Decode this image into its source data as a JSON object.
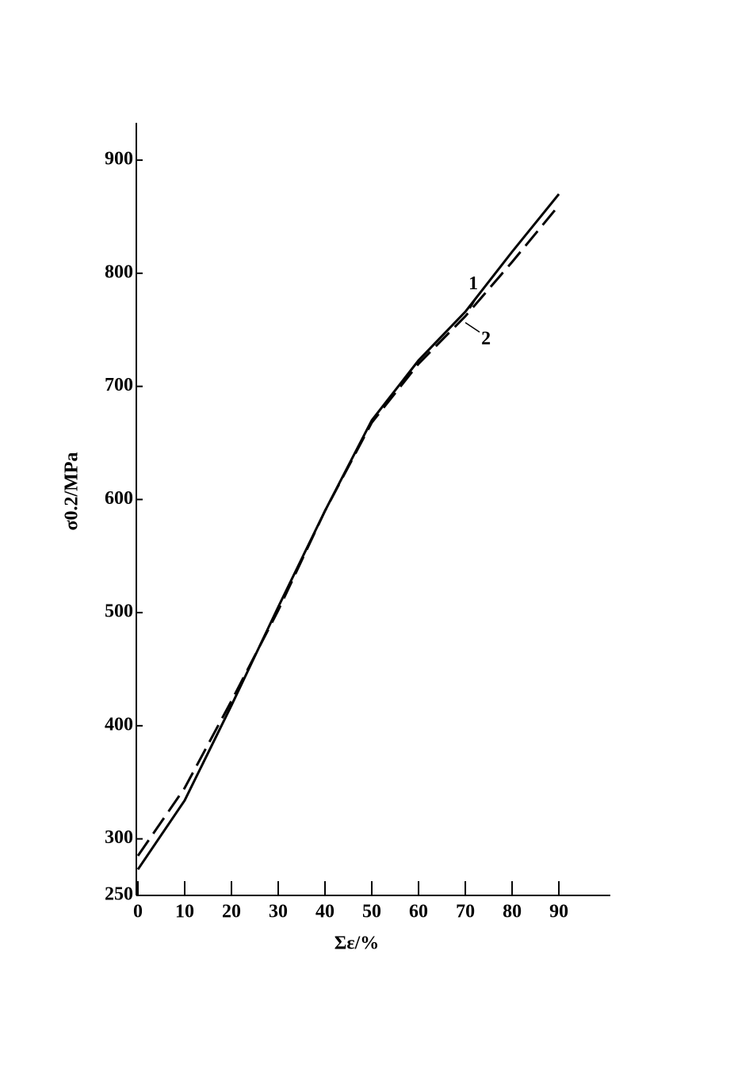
{
  "chart_data": {
    "type": "line",
    "x_label": "Σε/%",
    "y_label": "σ0.2/MPa",
    "x": [
      0,
      10,
      20,
      30,
      40,
      50,
      60,
      70,
      80,
      90
    ],
    "series": [
      {
        "name": "1",
        "color": "#000000",
        "style": "solid",
        "values": [
          273,
          334,
          418,
          505,
          590,
          670,
          723,
          766,
          819,
          870
        ]
      },
      {
        "name": "2",
        "color": "#000000",
        "style": "dashed",
        "values": [
          285,
          345,
          422,
          502,
          590,
          668,
          720,
          762,
          810,
          860
        ]
      }
    ],
    "xlim": [
      0,
      101
    ],
    "ylim": [
      250,
      933
    ],
    "xticks": [
      0,
      10,
      20,
      30,
      40,
      50,
      60,
      70,
      80,
      90
    ],
    "yticks": [
      250,
      300,
      400,
      500,
      600,
      700,
      800,
      900
    ],
    "grid": false
  }
}
